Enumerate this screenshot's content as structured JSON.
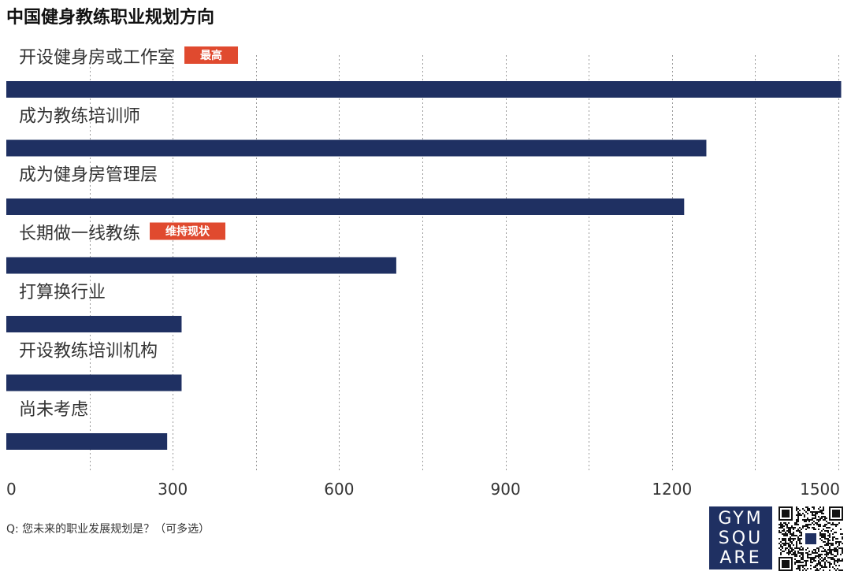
{
  "chart_data": {
    "type": "bar",
    "orientation": "horizontal",
    "title": "中国健身教练职业规划方向",
    "categories": [
      "开设健身房或工作室",
      "成为教练培训师",
      "成为健身房管理层",
      "长期做一线教练",
      "打算换行业",
      "开设教练培训机构",
      "尚未考虑"
    ],
    "values": [
      1505,
      1262,
      1222,
      703,
      316,
      316,
      290
    ],
    "badges": [
      {
        "category_index": 0,
        "text": "最高"
      },
      {
        "category_index": 3,
        "text": "维持现状"
      }
    ],
    "xlim": [
      0,
      1500
    ],
    "x_ticks": [
      0,
      300,
      600,
      900,
      1200,
      1500
    ],
    "x_grid_step": 150,
    "grid": "vertical dotted",
    "xlabel": "",
    "ylabel": "",
    "footnote": "Q: 您未来的职业发展规划是？（可多选）",
    "bar_color": "#1f3062",
    "badge_color": "#e04a2f",
    "grid_color": "#9a9a9a"
  },
  "brand": {
    "logo_lines": [
      "GYM",
      "SQU",
      "ARE"
    ],
    "logo_color": "#1f3062"
  }
}
